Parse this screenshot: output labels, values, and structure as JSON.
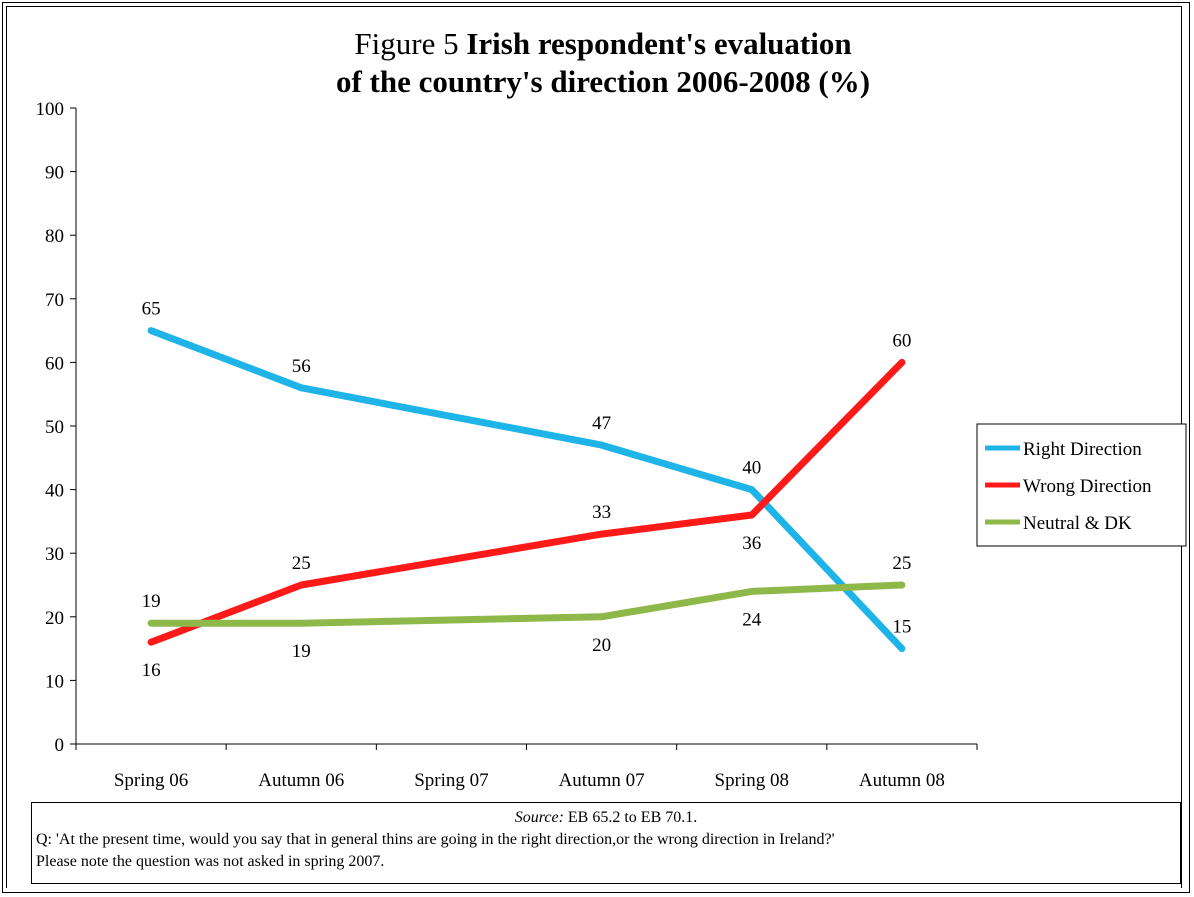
{
  "chart_data": {
    "type": "line",
    "title_prefix": "Figure 5",
    "title_bold_line1": "Irish respondent's evaluation",
    "title_line2": "of the country's direction 2006-2008 (%)",
    "categories": [
      "Spring 06",
      "Autumn 06",
      "Spring 07",
      "Autumn 07",
      "Spring 08",
      "Autumn 08"
    ],
    "x": [
      0,
      1,
      3,
      4,
      5
    ],
    "x_labels_used": [
      "Spring 06",
      "Autumn 06",
      "Autumn 07",
      "Spring 08",
      "Autumn 08"
    ],
    "yticks": [
      "0",
      "10",
      "20",
      "30",
      "40",
      "50",
      "60",
      "70",
      "80",
      "90",
      "100"
    ],
    "ylim": [
      0,
      100
    ],
    "grid": false,
    "legend_position": "right",
    "series": [
      {
        "name": "Right Direction",
        "color": "#1fb4e8",
        "values": [
          65,
          56,
          47,
          40,
          15
        ],
        "labels": [
          "65",
          "56",
          "47",
          "40",
          "15"
        ]
      },
      {
        "name": "Wrong Direction",
        "color": "#ff1a1a",
        "values": [
          16,
          25,
          33,
          36,
          60
        ],
        "labels": [
          "16",
          "25",
          "33",
          "36",
          "60"
        ]
      },
      {
        "name": "Neutral & DK",
        "color": "#8fb84a",
        "values": [
          19,
          19,
          20,
          24,
          25
        ],
        "labels": [
          "19",
          "19",
          "20",
          "24",
          "25"
        ]
      }
    ]
  },
  "note": {
    "source_label": "Source:",
    "source_text": " EB 65.2 to EB 70.1.",
    "question": "Q: 'At the present time, would you say that in general thins are going in the right direction,or the wrong direction  in Ireland?'",
    "remark": "Please note the question was not asked in spring 2007."
  }
}
